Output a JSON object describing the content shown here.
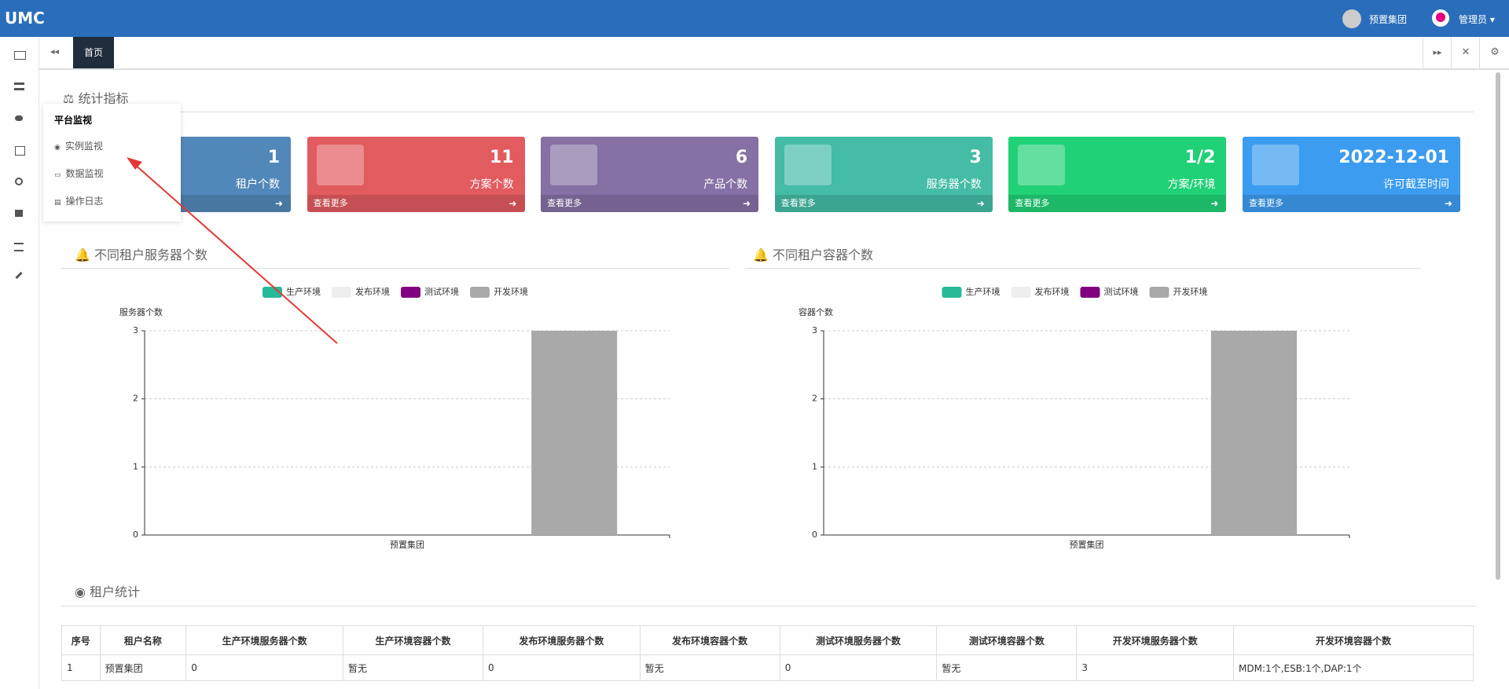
{
  "header": {
    "logo": "UMC",
    "org": "预置集团",
    "user": "管理员"
  },
  "tab": {
    "active": "首页"
  },
  "menu": {
    "title": "平台监视",
    "items": [
      "实例监视",
      "数据监视",
      "操作日志"
    ]
  },
  "stats": {
    "title": "统计指标",
    "more": "查看更多",
    "cards": [
      {
        "value": "1",
        "label": "租户个数",
        "color": "#5288b9"
      },
      {
        "value": "11",
        "label": "方案个数",
        "color": "#e15b5f"
      },
      {
        "value": "6",
        "label": "产品个数",
        "color": "#8571a4"
      },
      {
        "value": "3",
        "label": "服务器个数",
        "color": "#45bca6"
      },
      {
        "value": "1/2",
        "label": "方案/环境",
        "color": "#21d177"
      },
      {
        "value": "2022-12-01",
        "label": "许可截至时间",
        "color": "#3c9cf0"
      }
    ]
  },
  "chart_data": [
    {
      "type": "bar",
      "title": "不同租户服务器个数",
      "ylabel": "服务器个数",
      "categories": [
        "预置集团"
      ],
      "series": [
        {
          "name": "生产环境",
          "color": "#26b99a",
          "values": [
            0
          ]
        },
        {
          "name": "发布环境",
          "color": "#eeeeee",
          "values": [
            0
          ]
        },
        {
          "name": "测试环境",
          "color": "#800080",
          "values": [
            0
          ]
        },
        {
          "name": "开发环境",
          "color": "#a9a9a9",
          "values": [
            3
          ]
        }
      ],
      "ylim": [
        0,
        3
      ],
      "yticks": [
        0,
        1,
        2,
        3
      ],
      "grid": true,
      "legend": "top"
    },
    {
      "type": "bar",
      "title": "不同租户容器个数",
      "ylabel": "容器个数",
      "categories": [
        "预置集团"
      ],
      "series": [
        {
          "name": "生产环境",
          "color": "#26b99a",
          "values": [
            0
          ]
        },
        {
          "name": "发布环境",
          "color": "#eeeeee",
          "values": [
            0
          ]
        },
        {
          "name": "测试环境",
          "color": "#800080",
          "values": [
            0
          ]
        },
        {
          "name": "开发环境",
          "color": "#a9a9a9",
          "values": [
            3
          ]
        }
      ],
      "ylim": [
        0,
        3
      ],
      "yticks": [
        0,
        1,
        2,
        3
      ],
      "grid": true,
      "legend": "top"
    }
  ],
  "table": {
    "title": "租户统计",
    "columns": [
      "序号",
      "租户名称",
      "生产环境服务器个数",
      "生产环境容器个数",
      "发布环境服务器个数",
      "发布环境容器个数",
      "测试环境服务器个数",
      "测试环境容器个数",
      "开发环境服务器个数",
      "开发环境容器个数"
    ],
    "rows": [
      [
        "1",
        "预置集团",
        "0",
        "暂无",
        "0",
        "暂无",
        "0",
        "暂无",
        "3",
        "MDM:1个,ESB:1个,DAP:1个"
      ]
    ]
  }
}
